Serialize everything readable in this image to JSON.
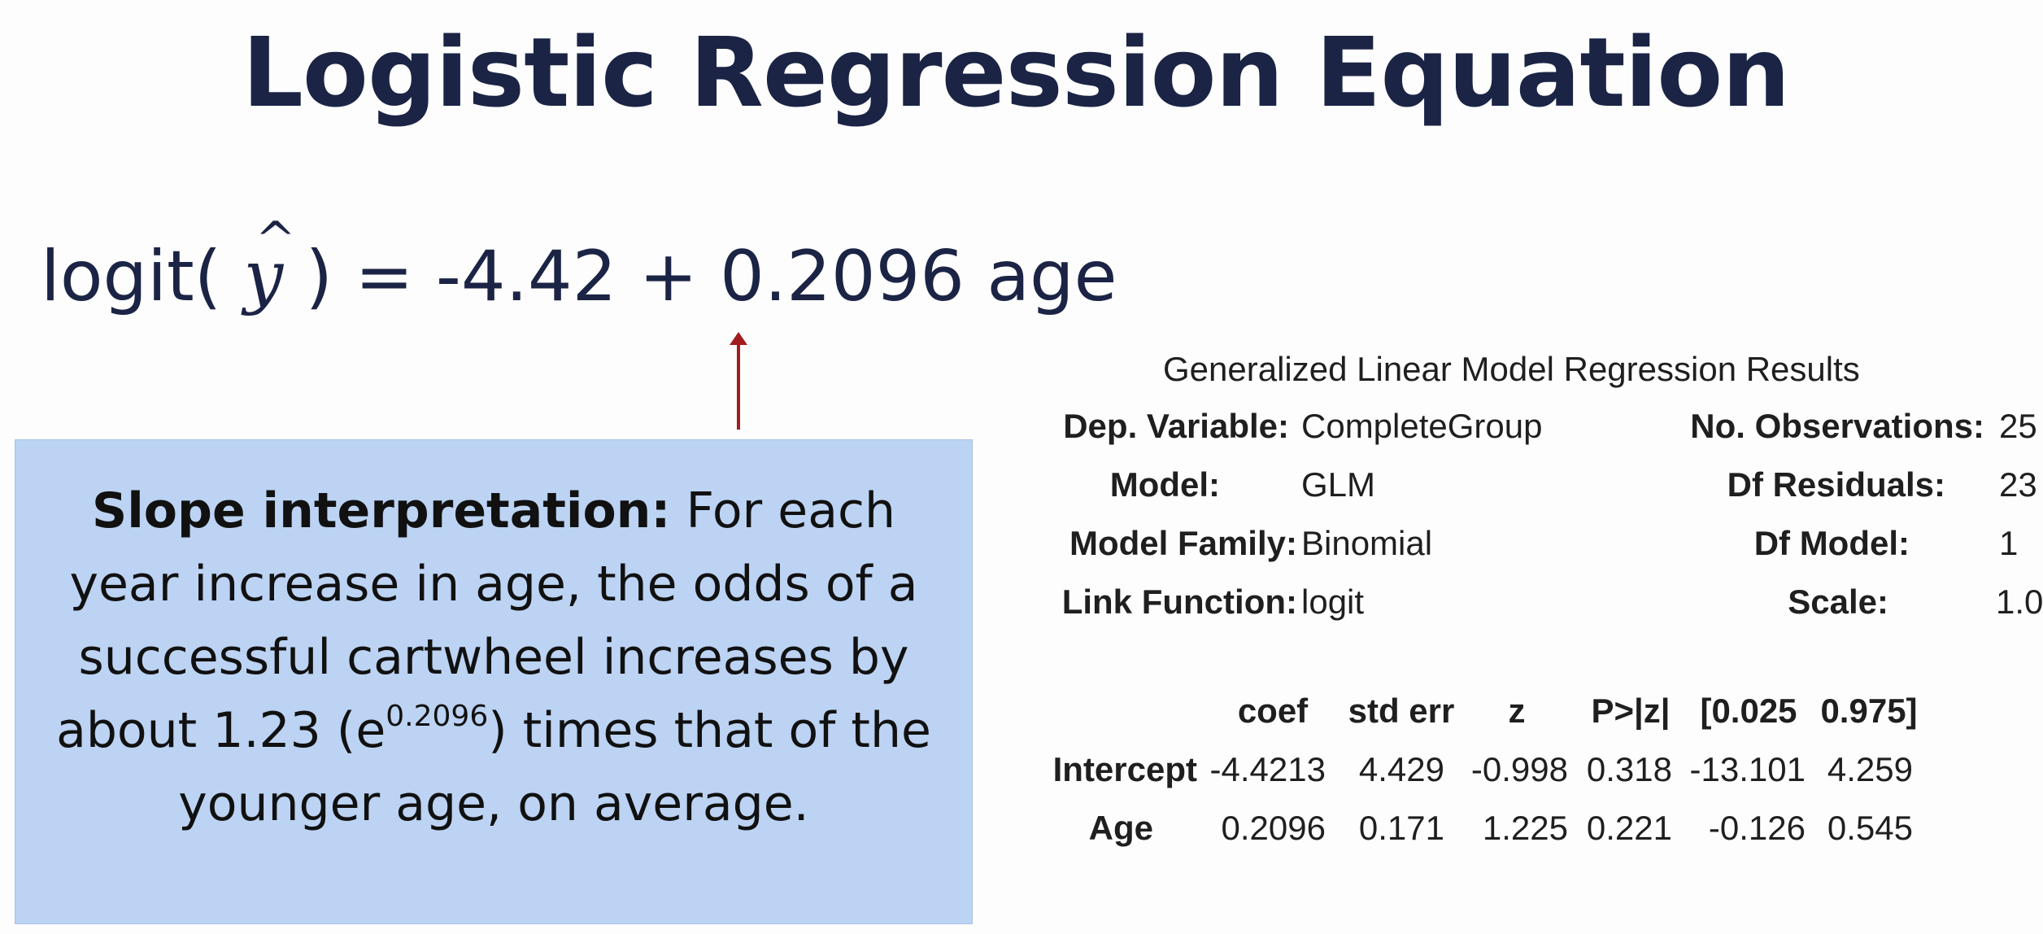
{
  "slide": {
    "title": "Logistic Regression Equation"
  },
  "equation": {
    "lhs_prefix": "logit(",
    "yhat_symbol": "y",
    "yhat_accent": "^",
    "lhs_suffix": ")",
    "rhs": "= -4.42 + 0.2096 age"
  },
  "callout": {
    "heading": "Slope interpretation:",
    "text_before": "For each year increase in age, the odds of a successful cartwheel increases by about 1.23 (e",
    "exponent": "0.2096",
    "text_after": ") times that of the younger age, on average.",
    "color": "#bcd3f3"
  },
  "arrow": {
    "color": "#a11d1d",
    "icon": "up-arrow-icon"
  },
  "glm": {
    "title": "Generalized Linear Model Regression Results",
    "summary": [
      {
        "label": "Dep. Variable:",
        "value": "CompleteGroup",
        "label2": "No. Observations:",
        "value2": "25"
      },
      {
        "label": "Model:",
        "value": "GLM",
        "label2": "Df Residuals:",
        "value2": "23"
      },
      {
        "label": "Model Family:",
        "value": "Binomial",
        "label2": "Df Model:",
        "value2": "1"
      },
      {
        "label": "Link Function:",
        "value": "logit",
        "label2": "Scale:",
        "value2": "1.0"
      }
    ],
    "coef_headers": [
      "coef",
      "std err",
      "z",
      "P>|z|",
      "[0.025",
      "0.975]"
    ],
    "coef_rows": [
      {
        "name": "Intercept",
        "values": [
          "-4.4213",
          "4.429",
          "-0.998",
          "0.318",
          "-13.101",
          "4.259"
        ]
      },
      {
        "name": "Age",
        "values": [
          "0.2096",
          "0.171",
          "1.225",
          "0.221",
          "-0.126",
          "0.545"
        ]
      }
    ]
  }
}
